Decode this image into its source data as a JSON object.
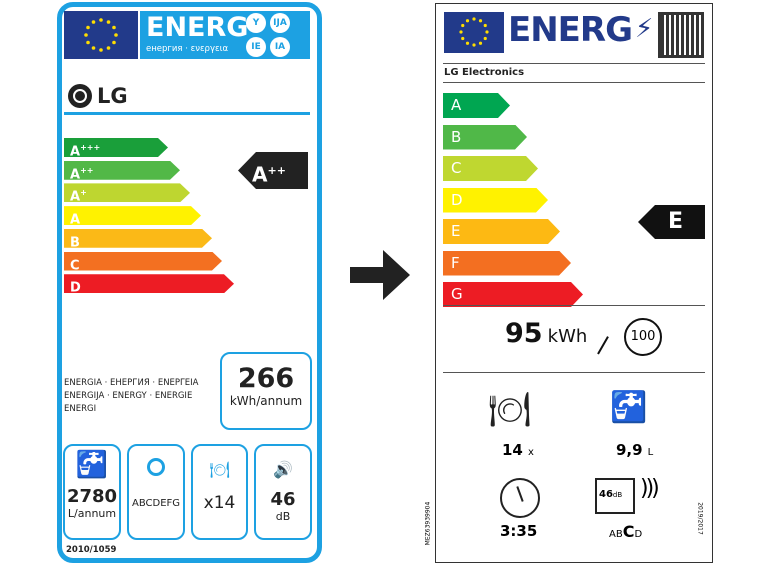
{
  "old_label": {
    "energy_title": "ENERG",
    "energy_subtitle": "енергия · ενεργεια",
    "lang_badges": [
      "Y",
      "IJA",
      "IE",
      "IA"
    ],
    "brand": "LG",
    "classes": [
      {
        "label": "A",
        "sup": "+++",
        "color": "#1a9f3a"
      },
      {
        "label": "A",
        "sup": "++",
        "color": "#52b847"
      },
      {
        "label": "A",
        "sup": "+",
        "color": "#bed630"
      },
      {
        "label": "A",
        "sup": "",
        "color": "#fff200"
      },
      {
        "label": "B",
        "sup": "",
        "color": "#fbb917"
      },
      {
        "label": "C",
        "sup": "",
        "color": "#f37021"
      },
      {
        "label": "D",
        "sup": "",
        "color": "#ed1c24"
      }
    ],
    "rating": {
      "label": "A",
      "sup": "++"
    },
    "energy_words": "ENERGIA · ЕНЕРГИЯ · ΕΝΕΡΓΕΙΑ ENERGIJA · ENERGY · ENERGIE ENERGI",
    "consumption": {
      "value": "266",
      "unit": "kWh/annum"
    },
    "water": {
      "value": "2780",
      "unit": "L/annum",
      "icon": "water-tap-icon"
    },
    "drying": {
      "value": "ABCDEFG",
      "icon": "drying-plate-icon"
    },
    "capacity": {
      "value": "x14",
      "icon": "place-settings-icon"
    },
    "noise": {
      "value": "46",
      "unit": "dB",
      "icon": "speaker-icon"
    },
    "regulation": "2010/1059",
    "accent": "#1da1e2"
  },
  "arrow_icon": "right-arrow-icon",
  "new_label": {
    "energy_title": "ENERG",
    "brand": "LG Electronics",
    "classes": [
      {
        "label": "A",
        "color": "#00a651"
      },
      {
        "label": "B",
        "color": "#50b848"
      },
      {
        "label": "C",
        "color": "#bfd730"
      },
      {
        "label": "D",
        "color": "#fff200"
      },
      {
        "label": "E",
        "color": "#fdb913"
      },
      {
        "label": "F",
        "color": "#f36f21"
      },
      {
        "label": "G",
        "color": "#ed1c24"
      }
    ],
    "rating": "E",
    "consumption": {
      "value": "95",
      "unit": "kWh",
      "cycles": "100"
    },
    "capacity": {
      "value": "14",
      "unit": "x"
    },
    "water": {
      "value": "9,9",
      "unit": "L"
    },
    "duration": "3:35",
    "noise": {
      "value": "46",
      "unit": "dB",
      "classes_pre": "AB",
      "class": "C",
      "classes_post": "D"
    },
    "model_code": "MEZ63939904",
    "regulation": "2019/2017"
  }
}
